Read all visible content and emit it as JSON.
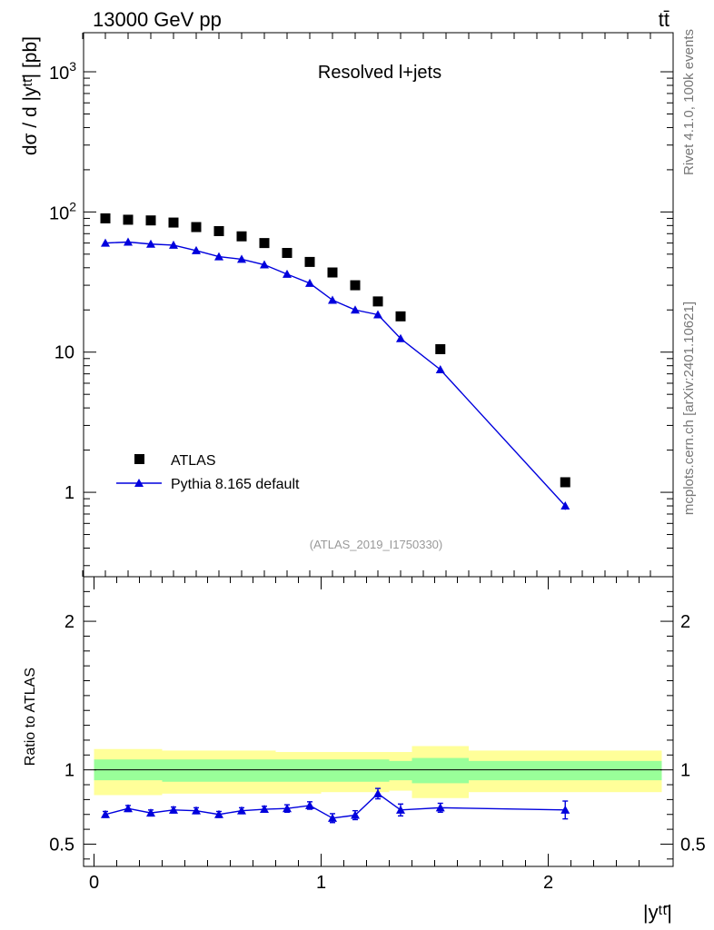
{
  "header": {
    "energy_label": "13000 GeV pp",
    "process_label": "tt̄"
  },
  "side_labels": {
    "rivet": "Rivet 4.1.0,  100k events",
    "source": "mcplots.cern.ch [arXiv:2401.10621]"
  },
  "colors": {
    "data": "#000000",
    "mc": "#0000dd",
    "band_outer": "#ffff99",
    "band_inner": "#99ff99"
  },
  "chart_data": [
    {
      "type": "scatter",
      "panel": "main",
      "title": "Resolved l+jets",
      "xlabel": "|yᵗᵗ̄|",
      "ylabel": "dσ / d |yᵗᵗ̄| [pb]",
      "yscale": "log",
      "xlim": [
        -0.08,
        2.55
      ],
      "ylim": [
        0.25,
        1900
      ],
      "y_ticks": [
        {
          "value": 1,
          "label": "1"
        },
        {
          "value": 10,
          "label": "10"
        },
        {
          "value": 100,
          "label": "10²"
        },
        {
          "value": 1000,
          "label": "10³"
        }
      ],
      "analysis_label": "(ATLAS_2019_I1750330)",
      "legend": {
        "position": "bottom-left",
        "entries": [
          "ATLAS",
          "Pythia 8.165 default"
        ]
      },
      "x_bins": [
        [
          0.0,
          0.1
        ],
        [
          0.1,
          0.2
        ],
        [
          0.2,
          0.3
        ],
        [
          0.3,
          0.4
        ],
        [
          0.4,
          0.5
        ],
        [
          0.5,
          0.6
        ],
        [
          0.6,
          0.7
        ],
        [
          0.7,
          0.8
        ],
        [
          0.8,
          0.9
        ],
        [
          0.9,
          1.0
        ],
        [
          1.0,
          1.1
        ],
        [
          1.1,
          1.2
        ],
        [
          1.2,
          1.3
        ],
        [
          1.3,
          1.4
        ],
        [
          1.4,
          1.65
        ],
        [
          1.65,
          2.5
        ]
      ],
      "series": [
        {
          "name": "ATLAS",
          "marker": "square",
          "x": [
            0.05,
            0.15,
            0.25,
            0.35,
            0.45,
            0.55,
            0.65,
            0.75,
            0.85,
            0.95,
            1.05,
            1.15,
            1.25,
            1.35,
            1.525,
            2.075
          ],
          "values": [
            90,
            88,
            87,
            84,
            78,
            73,
            67,
            60,
            51,
            44,
            37,
            30,
            23,
            18,
            10.5,
            1.18
          ]
        },
        {
          "name": "Pythia 8.165 default",
          "marker": "triangle",
          "x": [
            0.05,
            0.15,
            0.25,
            0.35,
            0.45,
            0.55,
            0.65,
            0.75,
            0.85,
            0.95,
            1.05,
            1.15,
            1.25,
            1.35,
            1.525,
            2.075
          ],
          "values": [
            60,
            61,
            59,
            58,
            53,
            48,
            46,
            42,
            36,
            31,
            23.5,
            20,
            18.5,
            12.5,
            7.5,
            0.8
          ],
          "errors": [
            0.6,
            0.6,
            0.6,
            0.6,
            0.5,
            0.5,
            0.5,
            0.4,
            0.4,
            0.4,
            0.3,
            0.3,
            0.3,
            0.2,
            0.1,
            0.05
          ]
        }
      ]
    },
    {
      "type": "scatter",
      "panel": "ratio",
      "title": "",
      "xlabel": "|yᵗᵗ̄|",
      "ylabel": "Ratio to ATLAS",
      "xlim": [
        -0.08,
        2.55
      ],
      "ylim": [
        0.35,
        2.3
      ],
      "x_ticks": [
        {
          "value": 0,
          "label": "0"
        },
        {
          "value": 1,
          "label": "1"
        },
        {
          "value": 2,
          "label": "2"
        }
      ],
      "y_ticks": [
        {
          "value": 0.5,
          "label": "0.5"
        },
        {
          "value": 1,
          "label": "1"
        },
        {
          "value": 2,
          "label": "2"
        }
      ],
      "bands": {
        "x_bins": [
          [
            0.0,
            0.1
          ],
          [
            0.1,
            0.2
          ],
          [
            0.2,
            0.3
          ],
          [
            0.3,
            0.4
          ],
          [
            0.4,
            0.5
          ],
          [
            0.5,
            0.6
          ],
          [
            0.6,
            0.7
          ],
          [
            0.7,
            0.8
          ],
          [
            0.8,
            0.9
          ],
          [
            0.9,
            1.0
          ],
          [
            1.0,
            1.1
          ],
          [
            1.1,
            1.2
          ],
          [
            1.2,
            1.3
          ],
          [
            1.3,
            1.4
          ],
          [
            1.4,
            1.65
          ],
          [
            1.65,
            2.5
          ]
        ],
        "outer_low": [
          0.83,
          0.83,
          0.83,
          0.84,
          0.84,
          0.84,
          0.84,
          0.84,
          0.84,
          0.84,
          0.85,
          0.85,
          0.85,
          0.86,
          0.81,
          0.85
        ],
        "outer_high": [
          1.14,
          1.14,
          1.14,
          1.13,
          1.13,
          1.13,
          1.13,
          1.13,
          1.12,
          1.12,
          1.12,
          1.12,
          1.12,
          1.12,
          1.16,
          1.13
        ],
        "inner_low": [
          0.93,
          0.93,
          0.93,
          0.92,
          0.92,
          0.92,
          0.92,
          0.92,
          0.92,
          0.92,
          0.92,
          0.92,
          0.92,
          0.93,
          0.91,
          0.93
        ],
        "inner_high": [
          1.07,
          1.07,
          1.07,
          1.07,
          1.07,
          1.07,
          1.07,
          1.07,
          1.07,
          1.07,
          1.07,
          1.07,
          1.07,
          1.06,
          1.08,
          1.06
        ]
      },
      "series": [
        {
          "name": "Pythia 8.165 default / ATLAS",
          "marker": "triangle",
          "x": [
            0.05,
            0.15,
            0.25,
            0.35,
            0.45,
            0.55,
            0.65,
            0.75,
            0.85,
            0.95,
            1.05,
            1.15,
            1.25,
            1.35,
            1.525,
            2.075
          ],
          "values": [
            0.7,
            0.74,
            0.71,
            0.73,
            0.725,
            0.7,
            0.725,
            0.735,
            0.74,
            0.76,
            0.675,
            0.695,
            0.84,
            0.73,
            0.745,
            0.73
          ],
          "errors": [
            0.02,
            0.02,
            0.02,
            0.02,
            0.02,
            0.02,
            0.02,
            0.02,
            0.025,
            0.025,
            0.03,
            0.03,
            0.035,
            0.04,
            0.03,
            0.06
          ]
        }
      ]
    }
  ]
}
